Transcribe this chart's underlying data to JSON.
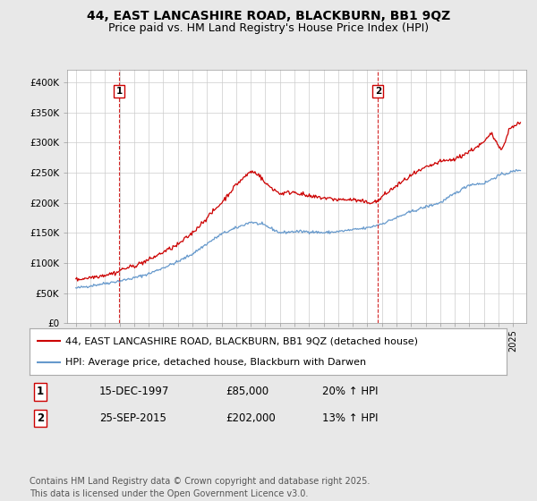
{
  "title_line1": "44, EAST LANCASHIRE ROAD, BLACKBURN, BB1 9QZ",
  "title_line2": "Price paid vs. HM Land Registry's House Price Index (HPI)",
  "ylim": [
    0,
    420000
  ],
  "yticks": [
    0,
    50000,
    100000,
    150000,
    200000,
    250000,
    300000,
    350000,
    400000
  ],
  "ytick_labels": [
    "£0",
    "£50K",
    "£100K",
    "£150K",
    "£200K",
    "£250K",
    "£300K",
    "£350K",
    "£400K"
  ],
  "sale1_year": 1997.96,
  "sale1_price": 85000,
  "sale1_label": "1",
  "sale1_date": "15-DEC-1997",
  "sale1_pct": "20% ↑ HPI",
  "sale2_year": 2015.73,
  "sale2_price": 202000,
  "sale2_label": "2",
  "sale2_date": "25-SEP-2015",
  "sale2_pct": "13% ↑ HPI",
  "line_color_red": "#cc0000",
  "line_color_blue": "#6699cc",
  "dashed_color": "#cc0000",
  "background_color": "#e8e8e8",
  "plot_bg_color": "#ffffff",
  "grid_color": "#cccccc",
  "legend_line1": "44, EAST LANCASHIRE ROAD, BLACKBURN, BB1 9QZ (detached house)",
  "legend_line2": "HPI: Average price, detached house, Blackburn with Darwen",
  "copyright": "Contains HM Land Registry data © Crown copyright and database right 2025.\nThis data is licensed under the Open Government Licence v3.0.",
  "title_fontsize": 10,
  "subtitle_fontsize": 9,
  "tick_fontsize": 7.5,
  "legend_fontsize": 8,
  "table_fontsize": 8.5,
  "copyright_fontsize": 7
}
